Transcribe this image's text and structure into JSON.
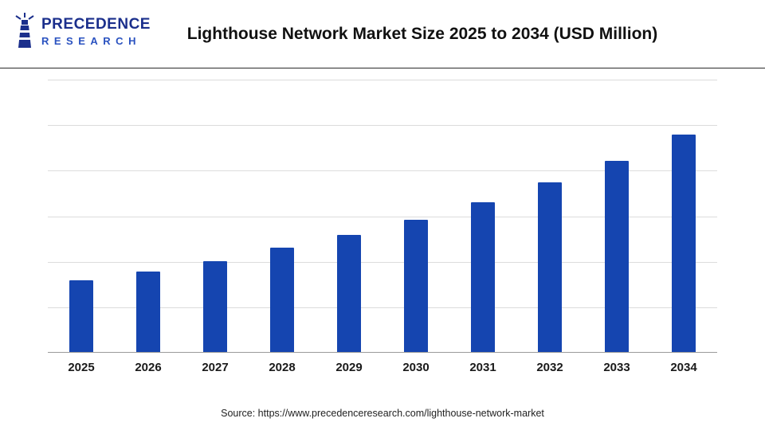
{
  "header": {
    "logo": {
      "line1": "PRECEDENCE",
      "line2": "RESEARCH"
    },
    "title": "Lighthouse Network Market Size 2025 to 2034 (USD Million)"
  },
  "chart_data": {
    "type": "bar",
    "title": "Lighthouse Network Market Size 2025 to 2034 (USD Million)",
    "categories": [
      "2025",
      "2026",
      "2027",
      "2028",
      "2029",
      "2030",
      "2031",
      "2032",
      "2033",
      "2034"
    ],
    "values": [
      33,
      37,
      42,
      48,
      54,
      61,
      69,
      78,
      88,
      100
    ],
    "xlabel": "",
    "ylabel": "",
    "ylim": [
      0,
      125
    ],
    "grid": true,
    "gridline_count": 6,
    "legend": "none",
    "bar_color": "#1545b0"
  },
  "footer": {
    "source": "Source: https://www.precedenceresearch.com/lighthouse-network-market"
  }
}
